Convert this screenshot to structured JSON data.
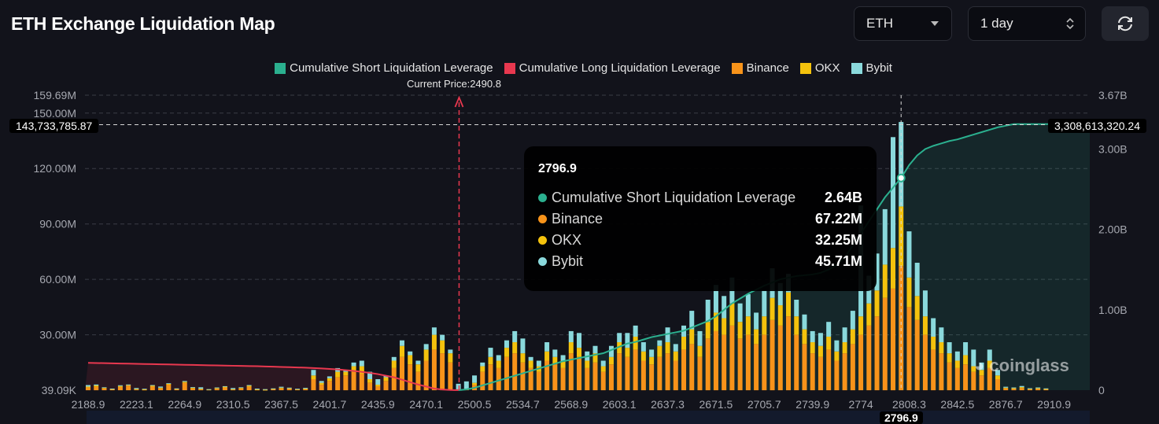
{
  "header": {
    "title": "ETH Exchange Liquidation Map",
    "symbol_select": "ETH",
    "range_select": "1 day",
    "refresh_icon": "refresh-icon"
  },
  "colors": {
    "cum_short": "#2bb08f",
    "cum_long": "#e8384f",
    "binance": "#f7931a",
    "okx": "#f4c20d",
    "bybit": "#8ad9dc"
  },
  "chart_data": {
    "type": "bar",
    "stacked": true,
    "legend": [
      "Cumulative Short Liquidation Leverage",
      "Cumulative Long Liquidation Leverage",
      "Binance",
      "OKX",
      "Bybit"
    ],
    "legend_position": "top",
    "current_price_label": "Current Price:2490.8",
    "current_price": 2490.8,
    "x_tick_labels": [
      "2188.9",
      "2223.1",
      "2264.9",
      "2310.5",
      "2367.5",
      "2401.7",
      "2435.9",
      "2470.1",
      "2500.5",
      "2534.7",
      "2568.9",
      "2603.1",
      "2637.3",
      "2671.5",
      "2705.7",
      "2739.9",
      "2774",
      "2808.3",
      "2842.5",
      "2876.7",
      "2910.9"
    ],
    "y_left_ticks": [
      "159.69M",
      "150.00M",
      "120.00M",
      "90.00M",
      "60.00M",
      "30.00M",
      "39.09K"
    ],
    "y_left_tick_values_M": [
      159.69,
      150,
      120,
      90,
      60,
      30,
      0.039
    ],
    "y_left_range_M": [
      0.039,
      159.69
    ],
    "y_right_ticks": [
      "3.67B",
      "3.00B",
      "2.00B",
      "1.00B",
      "0"
    ],
    "y_right_tick_values_B": [
      3.67,
      3,
      2,
      1,
      0
    ],
    "y_right_range_B": [
      0,
      3.67
    ],
    "grid": "horizontal dashed",
    "unit_bars": "M",
    "unit_lines": "B",
    "series": [
      {
        "name": "Binance",
        "values": [
          1.5,
          2,
          1,
          0.5,
          1.8,
          2.5,
          0.4,
          0.3,
          2,
          1,
          3,
          0.5,
          4,
          1,
          0.6,
          0.3,
          0.8,
          1.5,
          0.4,
          1,
          2,
          0.3,
          0.2,
          0.5,
          1,
          0.8,
          0.4,
          0.6,
          6,
          3,
          5,
          7,
          8,
          10,
          9,
          4,
          2,
          5,
          12,
          18,
          14,
          10,
          16,
          22,
          20,
          15,
          0.3,
          0.5,
          3,
          10,
          14,
          12,
          18,
          20,
          15,
          12,
          10,
          16,
          14,
          12,
          20,
          18,
          12,
          15,
          10,
          14,
          20,
          18,
          22,
          16,
          14,
          18,
          20,
          16,
          22,
          25,
          18,
          28,
          32,
          30,
          35,
          28,
          30,
          25,
          30,
          38,
          35,
          40,
          30,
          25,
          20,
          18,
          22,
          16,
          20,
          25,
          30,
          35,
          40,
          50,
          55,
          67.22,
          45,
          38,
          30,
          22,
          20,
          15,
          12,
          14,
          10,
          8,
          12,
          6,
          1,
          0.8,
          1.2,
          0.6,
          0.8,
          0.5
        ]
      },
      {
        "name": "OKX",
        "values": [
          0.5,
          0.6,
          0.3,
          0.2,
          0.5,
          0.4,
          0.3,
          0.2,
          0.6,
          0.4,
          0.5,
          0.3,
          0.6,
          0.4,
          0.2,
          0.1,
          0.4,
          0.5,
          0.2,
          0.3,
          0.6,
          0.2,
          0.1,
          0.3,
          0.4,
          0.3,
          0.2,
          0.3,
          2,
          1,
          1.5,
          3,
          2,
          3,
          4,
          2,
          1,
          2,
          4,
          6,
          5,
          4,
          6,
          8,
          7,
          5,
          0.2,
          0.3,
          1,
          3,
          4,
          4,
          5,
          6,
          5,
          4,
          3,
          5,
          4,
          4,
          6,
          5,
          4,
          5,
          3,
          4,
          6,
          5,
          7,
          5,
          4,
          6,
          6,
          5,
          7,
          8,
          6,
          9,
          10,
          9,
          12,
          9,
          10,
          8,
          10,
          12,
          11,
          13,
          10,
          8,
          6,
          6,
          7,
          5,
          6,
          8,
          10,
          12,
          14,
          18,
          22,
          32.25,
          16,
          13,
          10,
          7,
          6,
          5,
          4,
          5,
          3,
          3,
          4,
          2,
          0.4,
          0.3,
          0.5,
          0.2,
          0.3,
          0.2
        ]
      },
      {
        "name": "Bybit",
        "values": [
          0.8,
          0.5,
          0.3,
          0.2,
          0.4,
          0.2,
          0.5,
          0.3,
          0.2,
          0.6,
          0.3,
          0.2,
          0.4,
          0.3,
          0.8,
          0.2,
          0.3,
          0.2,
          0.6,
          0.3,
          0.2,
          0.4,
          0.3,
          0.2,
          0.5,
          0.3,
          0.2,
          0.4,
          3,
          1,
          1,
          2,
          1,
          2,
          3,
          4,
          3,
          1,
          2,
          3,
          2,
          2,
          3,
          4,
          3,
          2,
          3,
          4,
          4,
          2,
          5,
          3,
          4,
          6,
          8,
          2,
          3,
          5,
          4,
          3,
          6,
          8,
          5,
          4,
          3,
          6,
          5,
          8,
          6,
          5,
          4,
          3,
          8,
          4,
          6,
          10,
          8,
          12,
          15,
          12,
          14,
          10,
          12,
          9,
          14,
          16,
          12,
          10,
          9,
          8,
          6,
          7,
          8,
          6,
          8,
          10,
          60,
          15,
          20,
          30,
          60,
          45.71,
          25,
          18,
          14,
          10,
          8,
          6,
          5,
          7,
          9,
          4,
          6,
          3,
          0.5,
          0.4,
          0.6,
          0.3,
          0.4,
          0.3
        ]
      },
      {
        "name": "Cumulative Short Liquidation Leverage",
        "values": [
          null,
          null,
          null,
          null,
          null,
          null,
          null,
          null,
          null,
          null,
          null,
          null,
          null,
          null,
          null,
          null,
          null,
          null,
          null,
          null,
          null,
          null,
          null,
          null,
          null,
          null,
          null,
          null,
          null,
          null,
          null,
          null,
          null,
          null,
          null,
          null,
          null,
          null,
          null,
          null,
          null,
          null,
          null,
          null,
          null,
          null,
          0,
          0.01,
          0.03,
          0.06,
          0.09,
          0.12,
          0.15,
          0.18,
          0.21,
          0.24,
          0.27,
          0.3,
          0.33,
          0.36,
          0.38,
          0.4,
          0.42,
          0.44,
          0.46,
          0.5,
          0.54,
          0.58,
          0.6,
          0.63,
          0.66,
          0.68,
          0.7,
          0.72,
          0.74,
          0.78,
          0.82,
          0.86,
          0.92,
          1.0,
          1.08,
          1.14,
          1.2,
          1.25,
          1.3,
          1.34,
          1.38,
          1.4,
          1.42,
          1.43,
          1.44,
          1.46,
          1.5,
          1.56,
          1.65,
          1.8,
          1.95,
          2.1,
          2.25,
          2.4,
          2.52,
          2.64,
          2.8,
          2.92,
          3.0,
          3.04,
          3.07,
          3.1,
          3.12,
          3.15,
          3.18,
          3.21,
          3.24,
          3.27,
          3.29,
          3.31,
          3.31,
          3.31,
          3.31,
          3.31
        ]
      },
      {
        "name": "Cumulative Long Liquidation Leverage",
        "values": [
          0.34,
          0.338,
          0.336,
          0.334,
          0.332,
          0.33,
          0.328,
          0.326,
          0.324,
          0.322,
          0.32,
          0.318,
          0.316,
          0.314,
          0.312,
          0.31,
          0.308,
          0.306,
          0.304,
          0.302,
          0.3,
          0.298,
          0.295,
          0.292,
          0.289,
          0.286,
          0.283,
          0.28,
          0.275,
          0.27,
          0.264,
          0.258,
          0.25,
          0.24,
          0.228,
          0.215,
          0.2,
          0.18,
          0.16,
          0.13,
          0.1,
          0.07,
          0.045,
          0.02,
          0.008,
          0.002,
          0
        ]
      }
    ],
    "crosshair": {
      "x_label": "2796.9",
      "y_left_label": "143,733,785.87",
      "y_right_label": "3,308,613,320.24"
    },
    "tooltip": {
      "title": "2796.9",
      "rows": [
        {
          "name": "Cumulative Short Liquidation Leverage",
          "value": "2.64B",
          "color": "#2bb08f"
        },
        {
          "name": "Binance",
          "value": "67.22M",
          "color": "#f7931a"
        },
        {
          "name": "OKX",
          "value": "32.25M",
          "color": "#f4c20d"
        },
        {
          "name": "Bybit",
          "value": "45.71M",
          "color": "#8ad9dc"
        }
      ]
    },
    "watermark": "coinglass"
  }
}
